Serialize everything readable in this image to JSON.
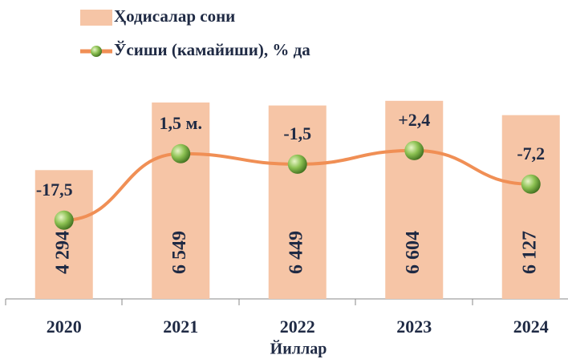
{
  "chart_data": {
    "type": "combo",
    "categories": [
      "2020",
      "2021",
      "2022",
      "2023",
      "2024"
    ],
    "x_label": "Йиллар",
    "legend": "top-left",
    "ylim": [
      0,
      7000
    ],
    "y2lim": [
      -40,
      20
    ],
    "series": [
      {
        "name": "Ҳодисалар сони",
        "type": "bar",
        "color": "#f6c5a6",
        "values": [
          4294,
          6549,
          6449,
          6604,
          6127
        ],
        "value_labels": [
          "4 294",
          "6 549",
          "6 449",
          "6 604",
          "6 127"
        ]
      },
      {
        "name": "Ўсиши (камайиши), % да",
        "type": "line",
        "axis": "y2",
        "color": "#f08f55",
        "marker_color": "#7fb446",
        "values": [
          -17.5,
          1.5,
          -1.5,
          2.4,
          -7.2
        ],
        "value_labels": [
          "-17,5",
          "1,5 м.",
          "-1,5",
          "+2,4",
          "-7,2"
        ]
      }
    ]
  }
}
